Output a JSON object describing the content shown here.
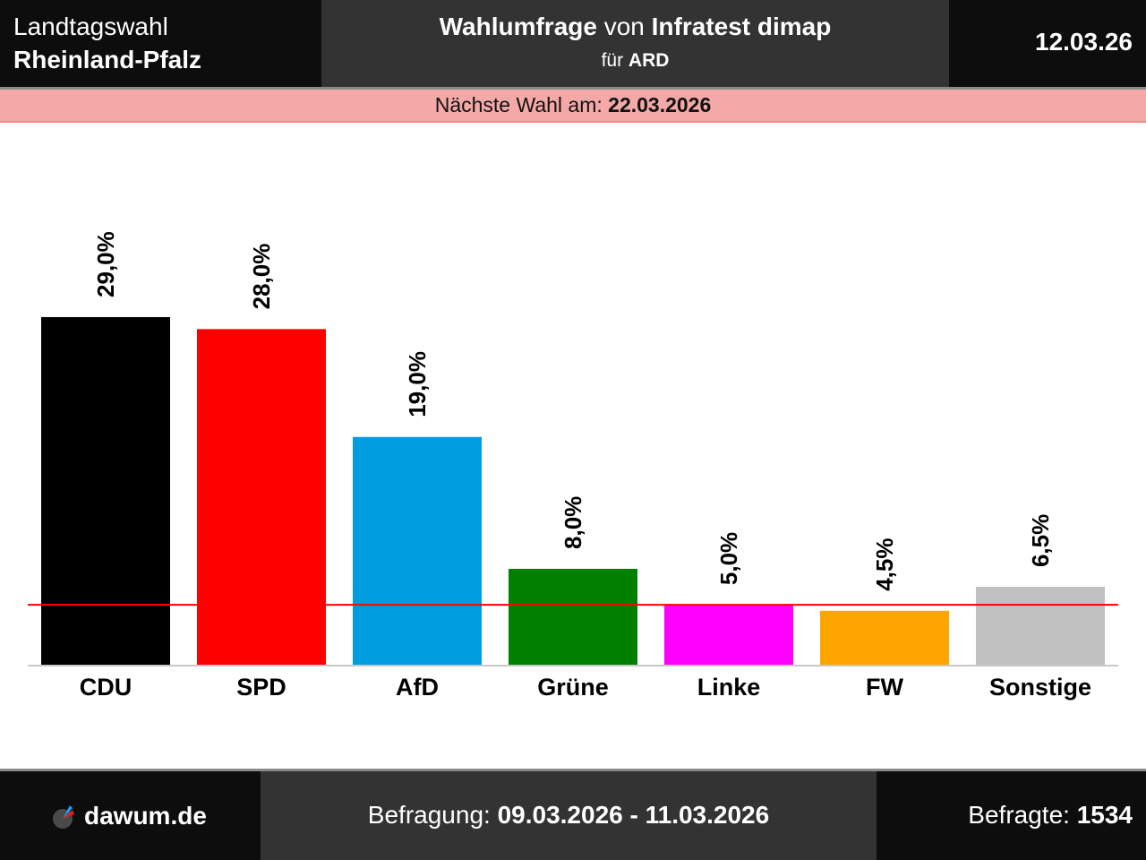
{
  "header": {
    "election_type": "Landtagswahl",
    "region": "Rheinland-Pfalz",
    "title_part1": "Wahlumfrage",
    "title_part2": " von ",
    "institute": "Infratest dimap",
    "client_prefix": "für ",
    "client": "ARD",
    "date": "12.03.26"
  },
  "banner": {
    "label": "Nächste Wahl am: ",
    "date": "22.03.2026"
  },
  "footer": {
    "site": "dawum.de",
    "survey_label": "Befragung: ",
    "survey_period": "09.03.2026 - 11.03.2026",
    "respondents_label": "Befragte: ",
    "respondents": "1534"
  },
  "chart_data": {
    "type": "bar",
    "title": "Wahlumfrage von Infratest dimap für ARD",
    "xlabel": "",
    "ylabel": "",
    "categories": [
      "CDU",
      "SPD",
      "AfD",
      "Grüne",
      "Linke",
      "FW",
      "Sonstige"
    ],
    "values": [
      29.0,
      28.0,
      19.0,
      8.0,
      5.0,
      4.5,
      6.5
    ],
    "value_labels": [
      "29,0%",
      "28,0%",
      "19,0%",
      "8,0%",
      "5,0%",
      "4,5%",
      "6,5%"
    ],
    "colors": [
      "#000000",
      "#ff0000",
      "#009ee0",
      "#008000",
      "#ff00ff",
      "#ffa500",
      "#c0c0c0"
    ],
    "threshold": 5,
    "threshold_color": "#ff0000",
    "ylim": [
      0,
      30
    ],
    "grid": false,
    "legend": "none"
  }
}
